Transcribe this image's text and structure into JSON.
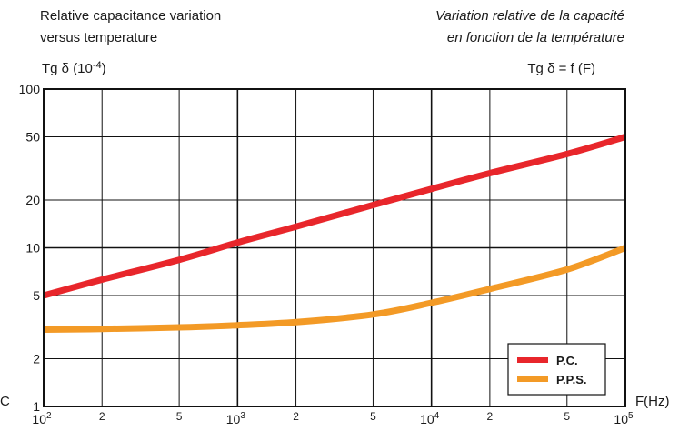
{
  "header": {
    "title_en": [
      "Relative capacitance variation",
      "versus temperature"
    ],
    "title_fr": [
      "Variation relative de la capacité",
      "en fonction de la température"
    ]
  },
  "chart_data": {
    "type": "line",
    "xscale": "log",
    "yscale": "log",
    "xlabel": "F(Hz)",
    "ylabel": "Tg δ (10-4)",
    "ylabel_sup": "-4",
    "right_label": "Tg δ = f (F)",
    "left_edge_label": "C",
    "xlim": [
      100,
      100000
    ],
    "ylim": [
      1,
      100
    ],
    "x_decades": [
      {
        "base": "10",
        "exp": "2",
        "value": 100
      },
      {
        "base": "10",
        "exp": "3",
        "value": 1000
      },
      {
        "base": "10",
        "exp": "4",
        "value": 10000
      },
      {
        "base": "10",
        "exp": "5",
        "value": 100000
      }
    ],
    "x_minor_ticks": [
      {
        "label": "2",
        "value": 200
      },
      {
        "label": "5",
        "value": 500
      },
      {
        "label": "2",
        "value": 2000
      },
      {
        "label": "5",
        "value": 5000
      },
      {
        "label": "2",
        "value": 20000
      },
      {
        "label": "5",
        "value": 50000
      }
    ],
    "y_ticks": [
      {
        "label": "1",
        "value": 1
      },
      {
        "label": "2",
        "value": 2
      },
      {
        "label": "5",
        "value": 5
      },
      {
        "label": "10",
        "value": 10
      },
      {
        "label": "20",
        "value": 20
      },
      {
        "label": "50",
        "value": 50
      },
      {
        "label": "100",
        "value": 100
      }
    ],
    "grid": true,
    "legend": {
      "position": "bottom-right"
    },
    "series": [
      {
        "name": "P.C.",
        "color": "#e8262b",
        "points": [
          [
            100,
            5.0
          ],
          [
            200,
            6.3
          ],
          [
            500,
            8.4
          ],
          [
            1000,
            10.8
          ],
          [
            2000,
            13.6
          ],
          [
            5000,
            18.6
          ],
          [
            10000,
            23.5
          ],
          [
            20000,
            29.5
          ],
          [
            50000,
            39.0
          ],
          [
            100000,
            50.0
          ]
        ]
      },
      {
        "name": "P.P.S.",
        "color": "#f39a26",
        "points": [
          [
            100,
            3.05
          ],
          [
            200,
            3.08
          ],
          [
            500,
            3.15
          ],
          [
            1000,
            3.25
          ],
          [
            2000,
            3.4
          ],
          [
            5000,
            3.8
          ],
          [
            10000,
            4.5
          ],
          [
            20000,
            5.5
          ],
          [
            50000,
            7.3
          ],
          [
            100000,
            10.0
          ]
        ]
      }
    ]
  }
}
